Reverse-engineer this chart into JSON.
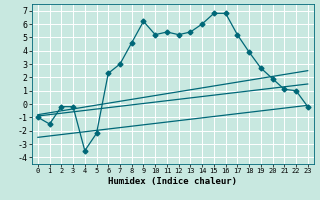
{
  "xlabel": "Humidex (Indice chaleur)",
  "background_color": "#c8e8e0",
  "grid_color": "#ffffff",
  "line_color": "#006878",
  "xlim": [
    -0.5,
    23.5
  ],
  "ylim": [
    -4.5,
    7.5
  ],
  "xticks": [
    0,
    1,
    2,
    3,
    4,
    5,
    6,
    7,
    8,
    9,
    10,
    11,
    12,
    13,
    14,
    15,
    16,
    17,
    18,
    19,
    20,
    21,
    22,
    23
  ],
  "yticks": [
    -4,
    -3,
    -2,
    -1,
    0,
    1,
    2,
    3,
    4,
    5,
    6,
    7
  ],
  "series_main": {
    "x": [
      0,
      1,
      2,
      3,
      4,
      5,
      6,
      7,
      8,
      9,
      10,
      11,
      12,
      13,
      14,
      15,
      16,
      17,
      18,
      19,
      20,
      21,
      22,
      23
    ],
    "y": [
      -1.0,
      -1.5,
      -0.2,
      -0.2,
      -3.5,
      -2.2,
      2.3,
      3.0,
      4.6,
      6.2,
      5.2,
      5.4,
      5.2,
      5.4,
      6.0,
      6.8,
      6.8,
      5.2,
      3.9,
      2.7,
      1.9,
      1.1,
      1.0,
      -0.2
    ]
  },
  "series_lines": [
    {
      "x": [
        0,
        23
      ],
      "y": [
        -0.8,
        2.5
      ]
    },
    {
      "x": [
        0,
        23
      ],
      "y": [
        -0.9,
        1.5
      ]
    },
    {
      "x": [
        0,
        23
      ],
      "y": [
        -2.5,
        -0.1
      ]
    }
  ]
}
